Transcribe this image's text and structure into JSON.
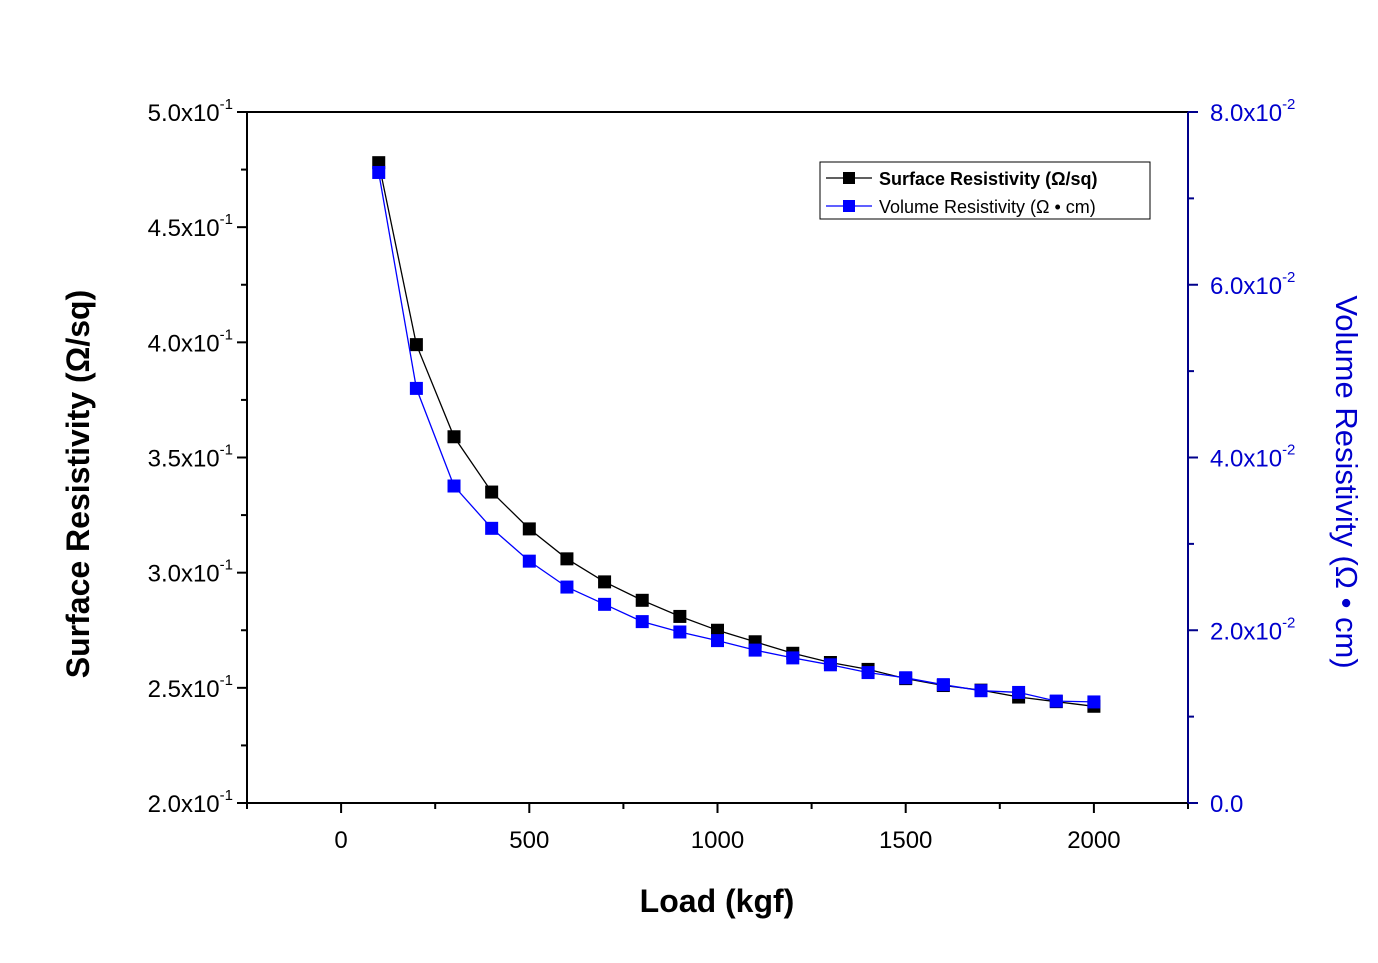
{
  "chart_data": {
    "type": "line",
    "title": "",
    "xlabel": "Load (kgf)",
    "ylabel_left": "Surface Resistivity (Ω/sq)",
    "ylabel_right": "Volume Resistivity  (Ω • cm)",
    "xlim": [
      -250,
      2250
    ],
    "ylim_left": [
      0.2,
      0.5
    ],
    "ylim_right": [
      0.0,
      0.08
    ],
    "x_ticks": [
      "0",
      "500",
      "1000",
      "1500",
      "2000"
    ],
    "x_tick_values": [
      0,
      500,
      1000,
      1500,
      2000
    ],
    "y_left_ticks": [
      {
        "value": 0.5,
        "mantissa": "5.0x10",
        "exp": "-1"
      },
      {
        "value": 0.45,
        "mantissa": "4.5x10",
        "exp": "-1"
      },
      {
        "value": 0.4,
        "mantissa": "4.0x10",
        "exp": "-1"
      },
      {
        "value": 0.35,
        "mantissa": "3.5x10",
        "exp": "-1"
      },
      {
        "value": 0.3,
        "mantissa": "3.0x10",
        "exp": "-1"
      },
      {
        "value": 0.25,
        "mantissa": "2.5x10",
        "exp": "-1"
      },
      {
        "value": 0.2,
        "mantissa": "2.0x10",
        "exp": "-1"
      }
    ],
    "y_right_ticks": [
      {
        "value": 0.08,
        "mantissa": "8.0x10",
        "exp": "-2"
      },
      {
        "value": 0.06,
        "mantissa": "6.0x10",
        "exp": "-2"
      },
      {
        "value": 0.04,
        "mantissa": "4.0x10",
        "exp": "-2"
      },
      {
        "value": 0.02,
        "mantissa": "2.0x10",
        "exp": "-2"
      },
      {
        "value": 0.0,
        "mantissa": "0.0",
        "exp": ""
      }
    ],
    "x": [
      100,
      200,
      300,
      400,
      500,
      600,
      700,
      800,
      900,
      1000,
      1100,
      1200,
      1300,
      1400,
      1500,
      1600,
      1700,
      1800,
      1900,
      2000
    ],
    "series": [
      {
        "name": "Surface Resistivity (Ω/sq)",
        "axis": "left",
        "color": "#000000",
        "bold_legend": true,
        "values": [
          0.478,
          0.399,
          0.359,
          0.335,
          0.319,
          0.306,
          0.296,
          0.288,
          0.281,
          0.275,
          0.27,
          0.265,
          0.261,
          0.258,
          0.254,
          0.251,
          0.249,
          0.246,
          0.244,
          0.242
        ]
      },
      {
        "name": "Volume Resistivity  (Ω • cm)",
        "axis": "right",
        "color": "#0000ff",
        "bold_legend": false,
        "values": [
          0.073,
          0.048,
          0.0367,
          0.0318,
          0.028,
          0.025,
          0.023,
          0.021,
          0.0198,
          0.0188,
          0.0177,
          0.0168,
          0.016,
          0.0151,
          0.0145,
          0.0137,
          0.013,
          0.0128,
          0.0118,
          0.0117
        ]
      }
    ],
    "legend": {
      "position": "top-right",
      "entries": [
        "Surface Resistivity (Ω/sq)",
        "Volume Resistivity  (Ω • cm)"
      ]
    },
    "colors": {
      "left_axis": "#000000",
      "right_axis": "#00008b",
      "right_labels": "#0000cd"
    }
  }
}
